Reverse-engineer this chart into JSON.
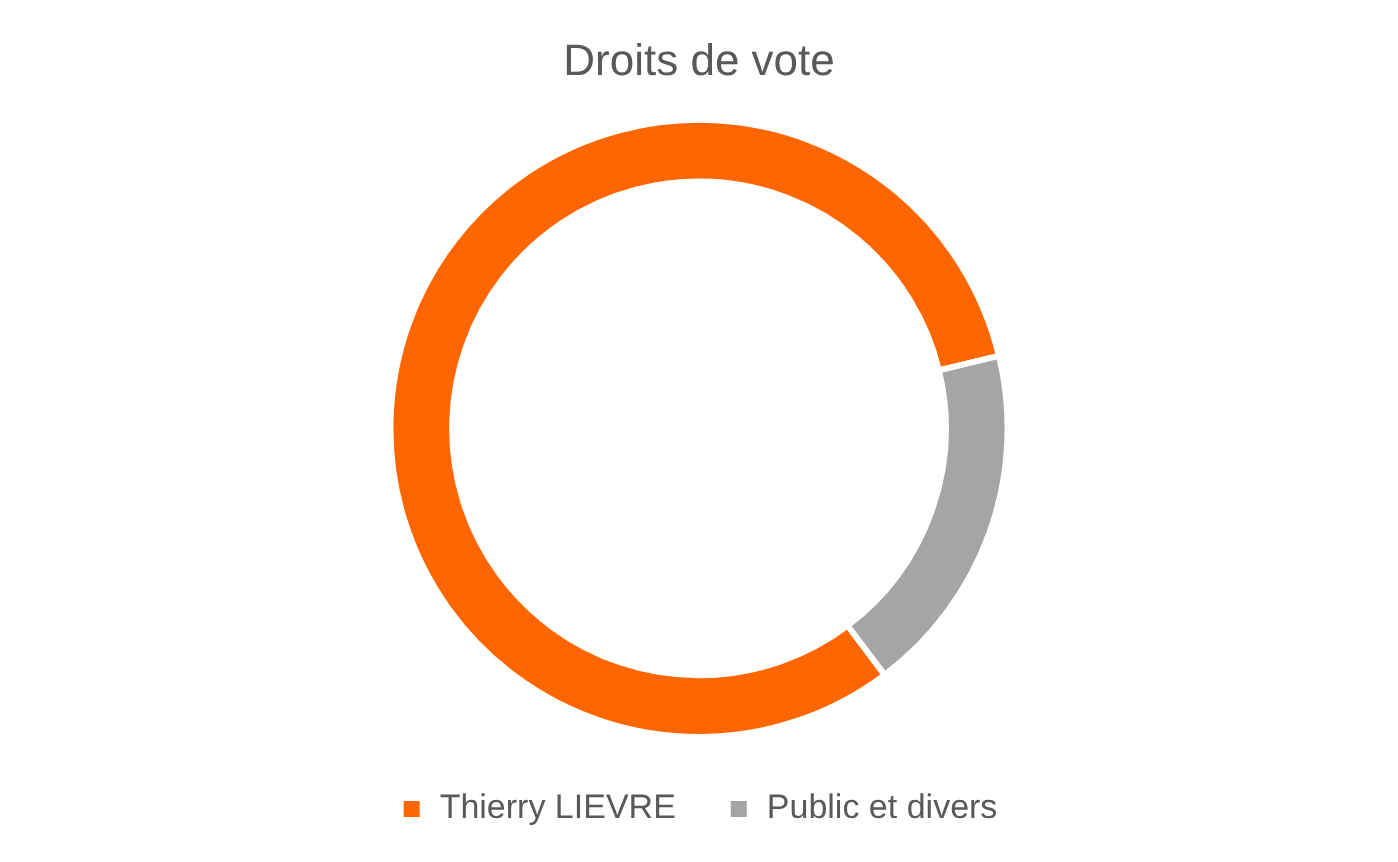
{
  "chart_data": {
    "type": "donut",
    "title": "Droits de vote",
    "categories": [
      "Thierry LIEVRE",
      "Public et divers"
    ],
    "values": [
      81.5,
      18.5
    ],
    "colors": [
      "#ff6600",
      "#a5a5a5"
    ],
    "legend": "bottom"
  }
}
